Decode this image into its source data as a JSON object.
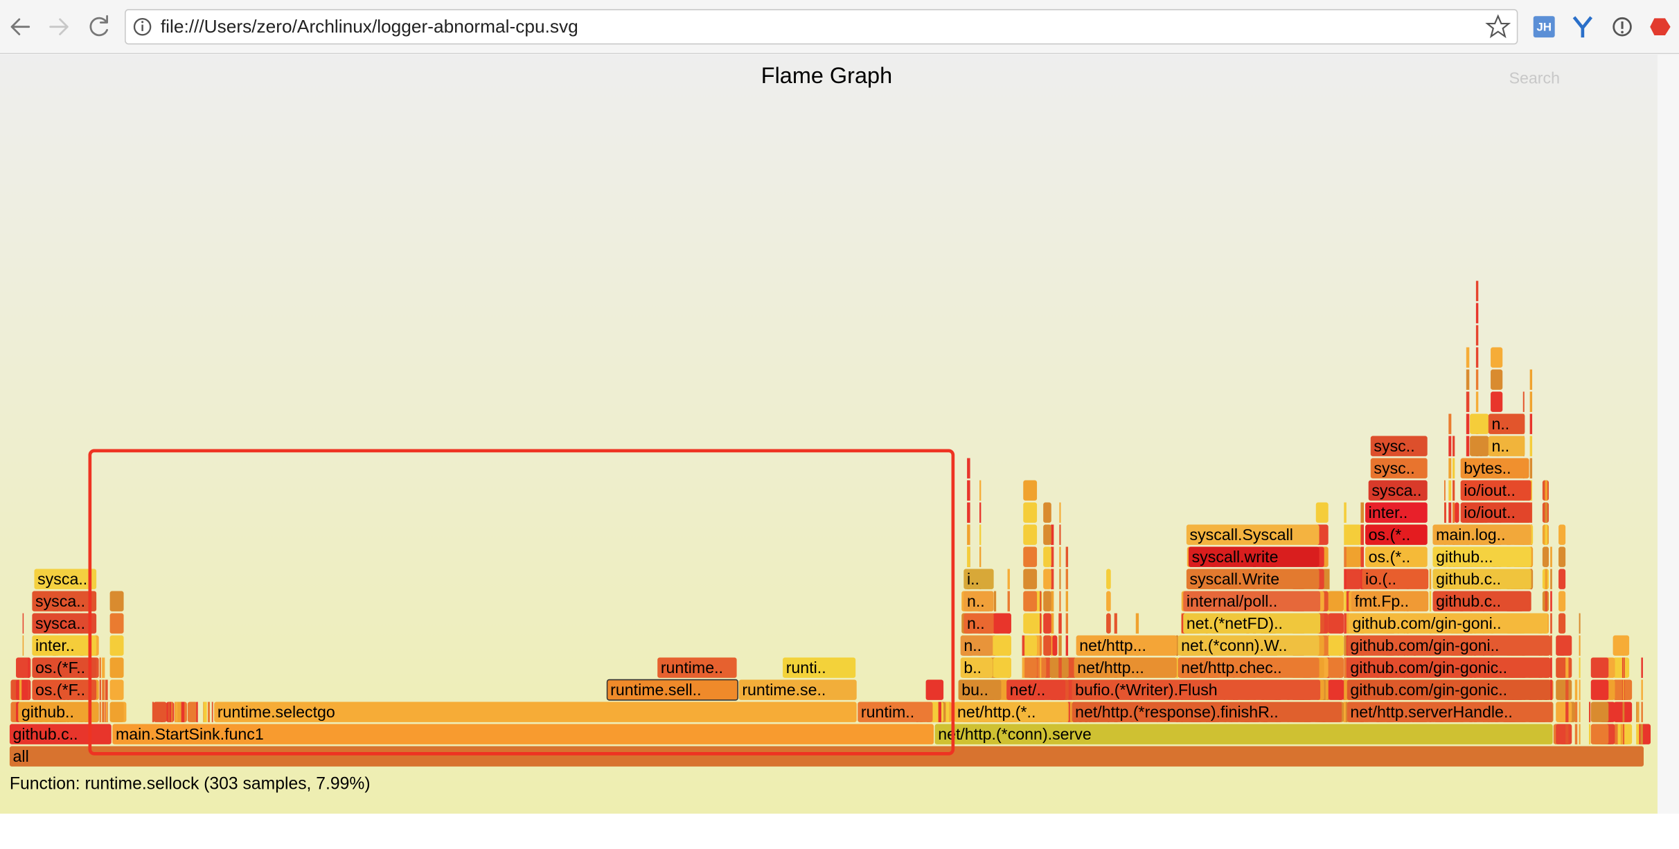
{
  "browser": {
    "url": "file:///Users/zero/Archlinux/logger-abnormal-cpu.svg",
    "extension_badge": "JH"
  },
  "flame_graph": {
    "title": "Flame Graph",
    "search": "Search",
    "frames": [
      "all",
      "github.c..",
      "main.StartSink.func1",
      "net/http.(*conn).serve",
      "github..",
      "runtime.selectgo",
      "runtim..",
      "net/http.(*..",
      "net/http.(*response).finishR..",
      "net/http.serverHandle..",
      "os.(*F..",
      "runtime.sell..",
      "runtime.se..",
      "bu..",
      "net/..",
      "bufio.(*Writer).Flush",
      "github.com/gin-gonic..",
      "os.(*F..",
      "runtime..",
      "runti..",
      "b..",
      "net/http...",
      "net/http.chec..",
      "github.com/gin-gonic..",
      "inter..",
      "n..",
      "net/http...",
      "net.(*conn).W..",
      "github.com/gin-goni..",
      "sysca..",
      "n..",
      "net.(*netFD)..",
      "github.com/gin-goni..",
      "sysca..",
      "n..",
      "internal/poll..",
      "fmt.Fp..",
      "github.c..",
      "sysca..",
      "i..",
      "syscall.Write",
      "io.(..",
      "github.c..",
      "syscall.write",
      "os.(*..",
      "github...",
      "syscall.Syscall",
      "os.(*..",
      "main.log..",
      "inter..",
      "io/iout..",
      "sysca..",
      "io/iout..",
      "sysc..",
      "bytes..",
      "sysc..",
      "n..",
      "n.."
    ],
    "details": "Function: runtime.sellock (303 samples, 7.99%)"
  }
}
